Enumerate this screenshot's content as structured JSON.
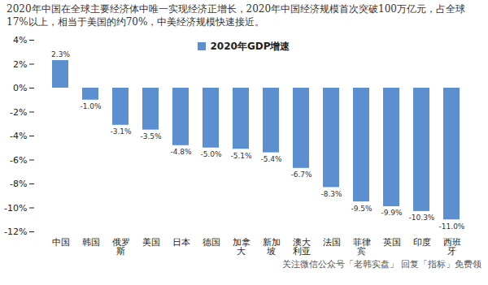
{
  "chart_data": {
    "type": "bar",
    "title": "2020年中国在全球主要经济体中唯一实现经济正增长，2020年中国经济规模首次突破100万亿元，占全球17%以上，相当于美国的约70%，中美经济规模快速接近。",
    "caption": "关注微信公众号「老韩实盘」 回复「指标」免费领",
    "categories": [
      "中国",
      "韩国",
      "俄罗斯",
      "美国",
      "日本",
      "德国",
      "加拿大",
      "新加坡",
      "澳大利亚",
      "法国",
      "菲律宾",
      "英国",
      "印度",
      "西班牙"
    ],
    "series": [
      {
        "name": "2020年GDP增速",
        "color": "#5b8fd0",
        "values": [
          2.3,
          -1.0,
          -3.1,
          -3.5,
          -4.8,
          -5.0,
          -5.1,
          -5.4,
          -6.7,
          -8.3,
          -9.5,
          -9.9,
          -10.3,
          -11.0
        ],
        "value_labels": [
          "2.3%",
          "-1.0%",
          "-3.1%",
          "-3.5%",
          "-4.8%",
          "-5.0%",
          "-5.1%",
          "-5.4%",
          "-6.7%",
          "-8.3%",
          "-9.5%",
          "-9.9%",
          "-10.3%",
          "-11.0%"
        ]
      }
    ],
    "ylim": [
      -12,
      4
    ],
    "yticks": [
      {
        "value": -12,
        "label": "-12%"
      },
      {
        "value": -10,
        "label": "-10%"
      },
      {
        "value": -8,
        "label": "-8%"
      },
      {
        "value": -6,
        "label": "-6%"
      },
      {
        "value": -4,
        "label": "-4%"
      },
      {
        "value": -2,
        "label": "-2%"
      },
      {
        "value": 0,
        "label": "0%"
      },
      {
        "value": 2,
        "label": "2%"
      },
      {
        "value": 4,
        "label": "4%"
      }
    ],
    "grid": false,
    "legend": "top",
    "data_labels": true
  }
}
